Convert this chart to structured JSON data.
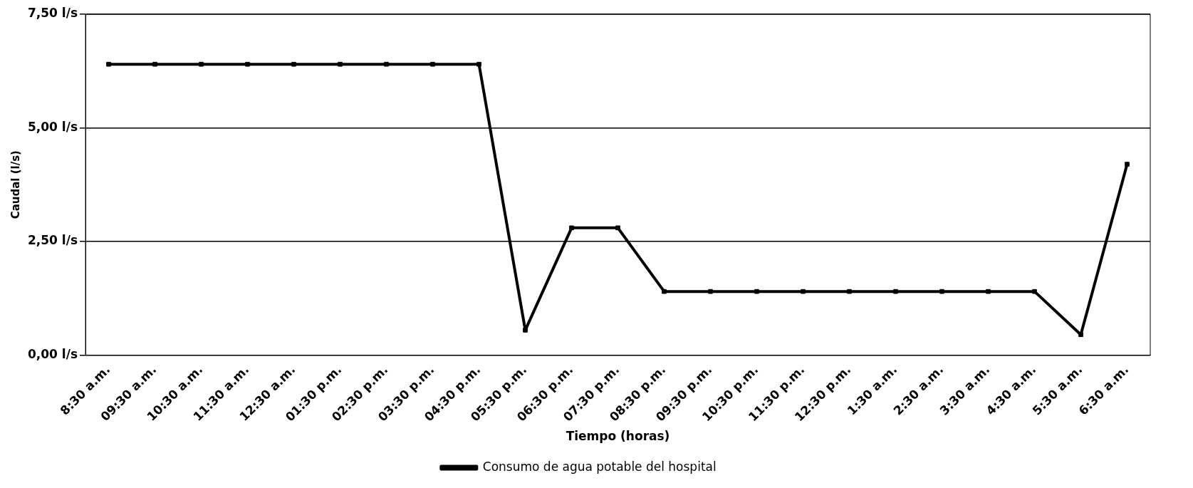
{
  "chart_data": {
    "type": "line",
    "xlabel": "Tiempo (horas)",
    "ylabel": "Caudal (l/s)",
    "categories": [
      "8:30 a.m.",
      "09:30 a.m.",
      "10:30 a.m.",
      "11:30 a.m.",
      "12:30 a.m.",
      "01:30 p.m.",
      "02:30 p.m.",
      "03:30 p.m.",
      "04:30 p.m.",
      "05:30 p.m.",
      "06:30 p.m.",
      "07:30 p.m.",
      "08:30 p.m.",
      "09:30 p.m.",
      "10:30 p.m.",
      "11:30 p.m.",
      "12:30 p.m.",
      "1:30 a.m.",
      "2:30 a.m.",
      "3:30 a.m.",
      "4:30 a.m.",
      "5:30 a.m.",
      "6:30 a.m."
    ],
    "series": [
      {
        "name": "Consumo de agua potable del hospital",
        "color": "#000000",
        "values": [
          6.4,
          6.4,
          6.4,
          6.4,
          6.4,
          6.4,
          6.4,
          6.4,
          6.4,
          0.55,
          2.8,
          2.8,
          1.4,
          1.4,
          1.4,
          1.4,
          1.4,
          1.4,
          1.4,
          1.4,
          1.4,
          0.45,
          4.2
        ]
      }
    ],
    "ylim": [
      0,
      7.5
    ],
    "yticks": [
      {
        "value": 0,
        "label": "0,00 l/s"
      },
      {
        "value": 2.5,
        "label": "2,50 l/s"
      },
      {
        "value": 5,
        "label": "5,00 l/s"
      },
      {
        "value": 7.5,
        "label": "7,50 l/s"
      }
    ],
    "grid": "y",
    "legend": "bottom",
    "marker": "square",
    "line_style": "solid"
  }
}
